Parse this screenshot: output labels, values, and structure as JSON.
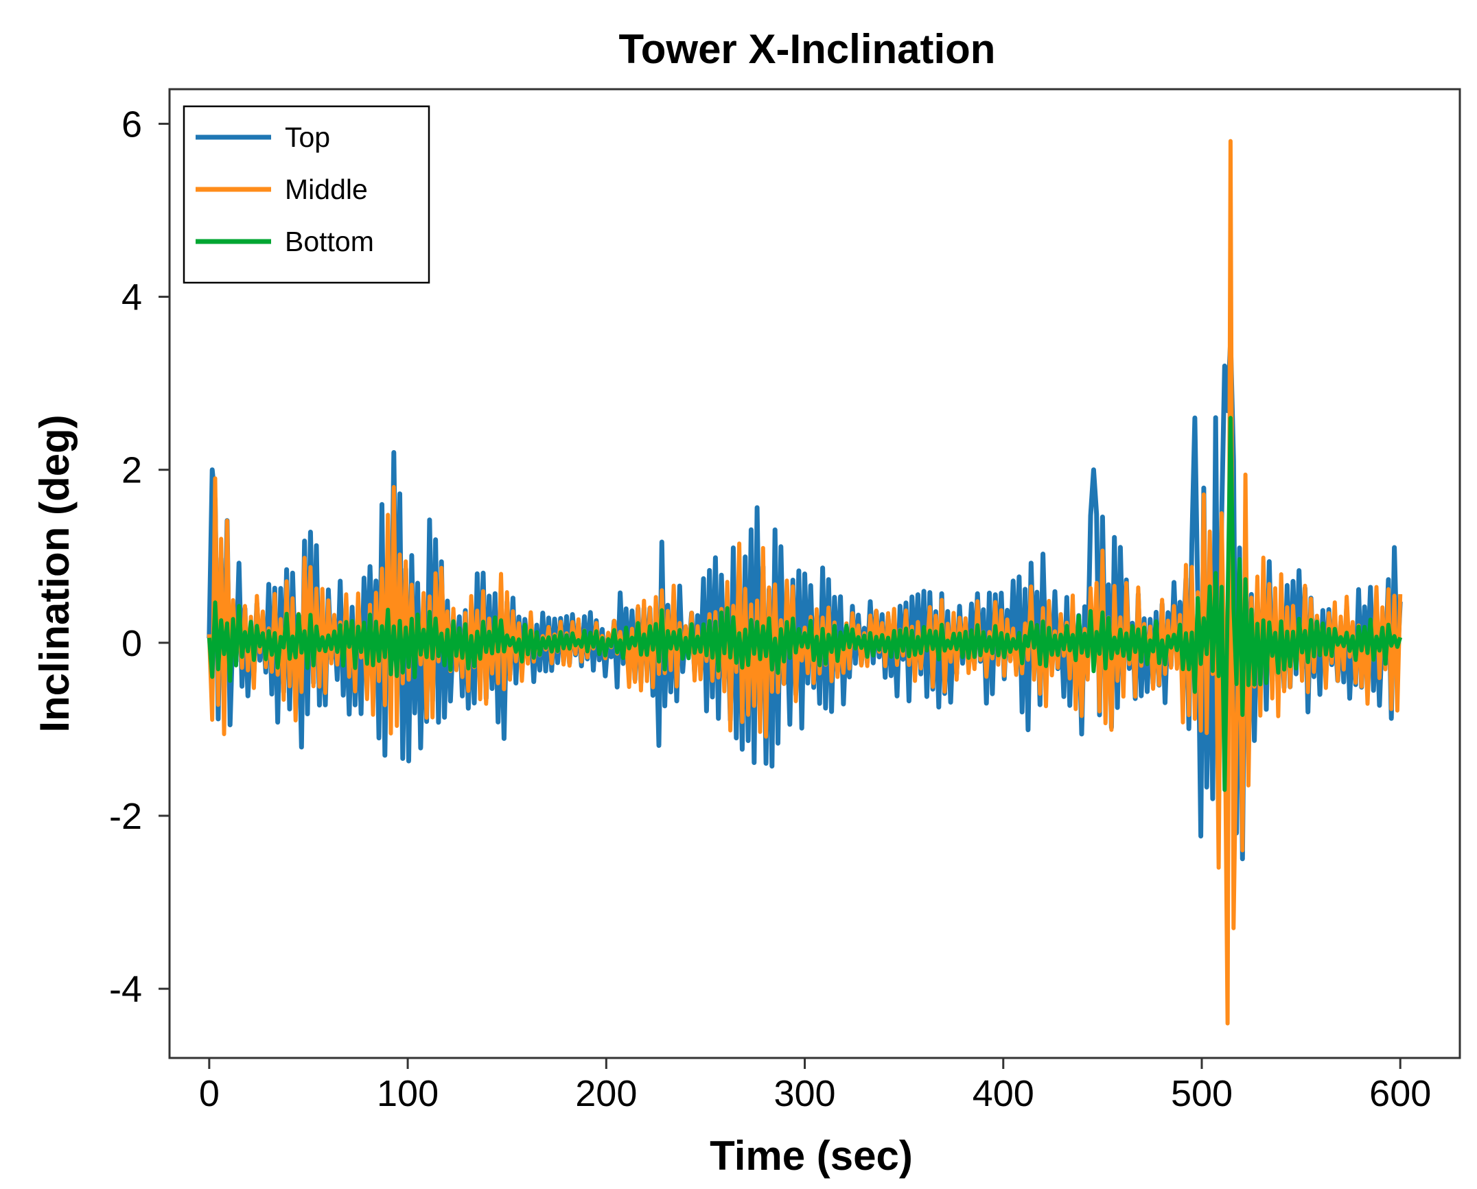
{
  "chart_data": {
    "type": "line",
    "title": "Tower X-Inclination",
    "xlabel": "Time (sec)",
    "ylabel": "Inclination (deg)",
    "xlim": [
      -20,
      630
    ],
    "ylim": [
      -4.8,
      6.4
    ],
    "x_ticks": [
      0,
      100,
      200,
      300,
      400,
      500,
      600
    ],
    "x_tick_labels": [
      "0",
      "100",
      "200",
      "300",
      "400",
      "500",
      "600"
    ],
    "y_ticks": [
      6,
      4,
      2,
      0,
      -2,
      -4
    ],
    "y_tick_labels": [
      "6",
      "4",
      "2",
      "0",
      "-2",
      "-4"
    ],
    "grid": false,
    "legend_position": "top-left",
    "series": [
      {
        "name": "Top",
        "color": "#1f77b4",
        "sample_interval": 1.5,
        "x_range": [
          0,
          600
        ],
        "envelope": [
          [
            0,
            0.2
          ],
          [
            2,
            2.0
          ],
          [
            5,
            1.3
          ],
          [
            8,
            1.6
          ],
          [
            12,
            1.0
          ],
          [
            20,
            0.8
          ],
          [
            30,
            0.7
          ],
          [
            40,
            1.3
          ],
          [
            50,
            1.6
          ],
          [
            60,
            0.7
          ],
          [
            70,
            0.9
          ],
          [
            80,
            0.9
          ],
          [
            88,
            1.7
          ],
          [
            93,
            2.2
          ],
          [
            100,
            1.4
          ],
          [
            110,
            1.2
          ],
          [
            112,
            2.0
          ],
          [
            120,
            1.0
          ],
          [
            130,
            0.9
          ],
          [
            140,
            1.2
          ],
          [
            150,
            1.1
          ],
          [
            160,
            0.5
          ],
          [
            175,
            0.3
          ],
          [
            190,
            0.4
          ],
          [
            200,
            0.4
          ],
          [
            210,
            0.7
          ],
          [
            220,
            0.8
          ],
          [
            226,
            1.5
          ],
          [
            232,
            1.0
          ],
          [
            240,
            0.5
          ],
          [
            250,
            0.8
          ],
          [
            260,
            1.4
          ],
          [
            270,
            1.5
          ],
          [
            280,
            1.7
          ],
          [
            290,
            1.0
          ],
          [
            300,
            1.1
          ],
          [
            310,
            0.9
          ],
          [
            320,
            0.7
          ],
          [
            330,
            0.5
          ],
          [
            340,
            0.5
          ],
          [
            350,
            0.7
          ],
          [
            360,
            0.6
          ],
          [
            370,
            0.8
          ],
          [
            380,
            0.7
          ],
          [
            390,
            0.8
          ],
          [
            400,
            0.6
          ],
          [
            410,
            1.0
          ],
          [
            420,
            1.1
          ],
          [
            430,
            0.6
          ],
          [
            440,
            1.2
          ],
          [
            446,
            2.0
          ],
          [
            452,
            1.5
          ],
          [
            460,
            1.1
          ],
          [
            470,
            0.8
          ],
          [
            480,
            0.7
          ],
          [
            490,
            1.0
          ],
          [
            497,
            2.6
          ],
          [
            503,
            2.2
          ],
          [
            507,
            2.7
          ],
          [
            510,
            3.2
          ],
          [
            515,
            3.5
          ],
          [
            518,
            3.1
          ],
          [
            522,
            2.5
          ],
          [
            527,
            1.5
          ],
          [
            535,
            1.3
          ],
          [
            540,
            1.0
          ],
          [
            550,
            0.9
          ],
          [
            560,
            0.8
          ],
          [
            570,
            0.6
          ],
          [
            580,
            0.9
          ],
          [
            590,
            1.0
          ],
          [
            600,
            1.2
          ]
        ],
        "peaks": [
          [
            2,
            2.0
          ],
          [
            93,
            2.2
          ],
          [
            446,
            2.0
          ],
          [
            497,
            2.6
          ],
          [
            512,
            3.2
          ],
          [
            515,
            3.5
          ],
          [
            518,
            -2.2
          ]
        ]
      },
      {
        "name": "Middle",
        "color": "#ff8c1a",
        "sample_interval": 1.5,
        "x_range": [
          0,
          600
        ],
        "envelope": [
          [
            0,
            0.2
          ],
          [
            2,
            1.7
          ],
          [
            5,
            1.2
          ],
          [
            8,
            1.6
          ],
          [
            12,
            0.9
          ],
          [
            20,
            0.6
          ],
          [
            30,
            0.5
          ],
          [
            40,
            0.9
          ],
          [
            50,
            1.1
          ],
          [
            60,
            0.5
          ],
          [
            70,
            0.6
          ],
          [
            80,
            0.7
          ],
          [
            88,
            1.3
          ],
          [
            93,
            1.8
          ],
          [
            100,
            1.0
          ],
          [
            110,
            0.9
          ],
          [
            112,
            1.4
          ],
          [
            120,
            0.8
          ],
          [
            130,
            0.6
          ],
          [
            140,
            0.9
          ],
          [
            150,
            0.8
          ],
          [
            160,
            0.4
          ],
          [
            175,
            0.25
          ],
          [
            190,
            0.3
          ],
          [
            200,
            0.3
          ],
          [
            210,
            0.5
          ],
          [
            220,
            0.6
          ],
          [
            226,
            1.2
          ],
          [
            232,
            0.9
          ],
          [
            240,
            0.4
          ],
          [
            250,
            0.6
          ],
          [
            260,
            1.1
          ],
          [
            270,
            1.2
          ],
          [
            280,
            1.3
          ],
          [
            290,
            0.8
          ],
          [
            300,
            0.8
          ],
          [
            310,
            0.7
          ],
          [
            320,
            0.5
          ],
          [
            330,
            0.4
          ],
          [
            340,
            0.4
          ],
          [
            350,
            0.5
          ],
          [
            360,
            0.5
          ],
          [
            370,
            0.6
          ],
          [
            380,
            0.5
          ],
          [
            390,
            0.6
          ],
          [
            400,
            0.5
          ],
          [
            410,
            0.7
          ],
          [
            420,
            0.8
          ],
          [
            430,
            0.5
          ],
          [
            440,
            1.0
          ],
          [
            446,
            1.3
          ],
          [
            452,
            1.1
          ],
          [
            460,
            0.8
          ],
          [
            470,
            0.6
          ],
          [
            480,
            0.6
          ],
          [
            490,
            0.9
          ],
          [
            497,
            1.9
          ],
          [
            503,
            1.7
          ],
          [
            507,
            2.0
          ],
          [
            510,
            2.9
          ],
          [
            515,
            3.0
          ],
          [
            518,
            2.6
          ],
          [
            522,
            2.1
          ],
          [
            527,
            1.3
          ],
          [
            535,
            1.1
          ],
          [
            540,
            0.8
          ],
          [
            550,
            0.7
          ],
          [
            560,
            0.6
          ],
          [
            570,
            0.5
          ],
          [
            580,
            0.7
          ],
          [
            590,
            0.8
          ],
          [
            600,
            0.8
          ]
        ],
        "peaks": [
          [
            3,
            1.9
          ],
          [
            93,
            1.8
          ],
          [
            508,
            -2.6
          ],
          [
            513,
            -4.4
          ],
          [
            514,
            5.8
          ],
          [
            516,
            -3.3
          ],
          [
            520,
            -2.4
          ]
        ]
      },
      {
        "name": "Bottom",
        "color": "#00a632",
        "sample_interval": 1.5,
        "x_range": [
          0,
          600
        ],
        "envelope": [
          [
            0,
            0.2
          ],
          [
            2,
            0.7
          ],
          [
            5,
            0.6
          ],
          [
            8,
            1.0
          ],
          [
            12,
            0.5
          ],
          [
            20,
            0.35
          ],
          [
            30,
            0.3
          ],
          [
            40,
            0.35
          ],
          [
            50,
            0.4
          ],
          [
            60,
            0.25
          ],
          [
            70,
            0.3
          ],
          [
            80,
            0.3
          ],
          [
            88,
            0.5
          ],
          [
            93,
            0.6
          ],
          [
            100,
            0.45
          ],
          [
            110,
            0.4
          ],
          [
            112,
            0.5
          ],
          [
            120,
            0.35
          ],
          [
            130,
            0.3
          ],
          [
            140,
            0.35
          ],
          [
            150,
            0.3
          ],
          [
            160,
            0.2
          ],
          [
            175,
            0.12
          ],
          [
            190,
            0.15
          ],
          [
            200,
            0.15
          ],
          [
            210,
            0.2
          ],
          [
            220,
            0.25
          ],
          [
            226,
            0.4
          ],
          [
            232,
            0.35
          ],
          [
            240,
            0.2
          ],
          [
            250,
            0.3
          ],
          [
            260,
            0.4
          ],
          [
            270,
            0.4
          ],
          [
            280,
            0.45
          ],
          [
            290,
            0.3
          ],
          [
            300,
            0.3
          ],
          [
            310,
            0.25
          ],
          [
            320,
            0.2
          ],
          [
            330,
            0.18
          ],
          [
            340,
            0.18
          ],
          [
            350,
            0.2
          ],
          [
            360,
            0.2
          ],
          [
            370,
            0.22
          ],
          [
            380,
            0.2
          ],
          [
            390,
            0.22
          ],
          [
            400,
            0.2
          ],
          [
            410,
            0.25
          ],
          [
            420,
            0.3
          ],
          [
            430,
            0.22
          ],
          [
            440,
            0.35
          ],
          [
            446,
            0.4
          ],
          [
            452,
            0.35
          ],
          [
            460,
            0.3
          ],
          [
            470,
            0.25
          ],
          [
            480,
            0.25
          ],
          [
            490,
            0.35
          ],
          [
            497,
            0.6
          ],
          [
            503,
            0.7
          ],
          [
            507,
            0.9
          ],
          [
            510,
            1.1
          ],
          [
            515,
            1.6
          ],
          [
            518,
            1.2
          ],
          [
            522,
            0.8
          ],
          [
            527,
            0.6
          ],
          [
            535,
            0.45
          ],
          [
            540,
            0.35
          ],
          [
            550,
            0.3
          ],
          [
            560,
            0.25
          ],
          [
            570,
            0.2
          ],
          [
            580,
            0.25
          ],
          [
            590,
            0.3
          ],
          [
            600,
            0.15
          ]
        ],
        "peaks": [
          [
            515,
            2.6
          ],
          [
            512,
            -1.7
          ]
        ]
      }
    ]
  }
}
